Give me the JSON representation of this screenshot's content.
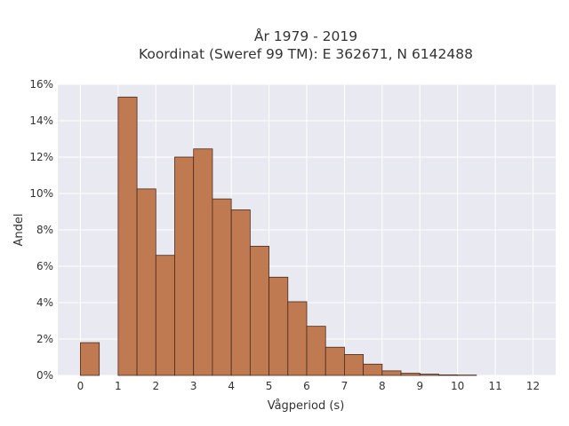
{
  "chart_data": {
    "type": "bar",
    "title": "År 1979 - 2019",
    "subtitle": "Koordinat (Sweref 99 TM): E 362671, N 6142488",
    "xlabel": "Vågperiod (s)",
    "ylabel": "Andel",
    "xlim": [
      -0.6,
      12.6
    ],
    "ylim": [
      0,
      16
    ],
    "x_ticks": [
      0,
      1,
      2,
      3,
      4,
      5,
      6,
      7,
      8,
      9,
      10,
      11,
      12
    ],
    "y_ticks": [
      0,
      2,
      4,
      6,
      8,
      10,
      12,
      14,
      16
    ],
    "y_tick_suffix": "%",
    "bin_width": 0.5,
    "bins_start": [
      0,
      1,
      1.5,
      2,
      2.5,
      3,
      3.5,
      4,
      4.5,
      5,
      5.5,
      6,
      6.5,
      7,
      7.5,
      8,
      8.5,
      9,
      9.5,
      10
    ],
    "values": [
      1.8,
      15.3,
      10.25,
      6.6,
      12.0,
      12.45,
      9.7,
      9.1,
      7.1,
      5.4,
      4.05,
      2.7,
      1.55,
      1.15,
      0.62,
      0.25,
      0.12,
      0.07,
      0.03,
      0.02
    ],
    "grid": true,
    "legend": "none",
    "colors": {
      "bar_fill": "#c07a52",
      "bar_stroke": "#4a2a1c",
      "plot_background": "#e9e9f1",
      "grid": "#ffffff",
      "text": "#333333"
    }
  }
}
